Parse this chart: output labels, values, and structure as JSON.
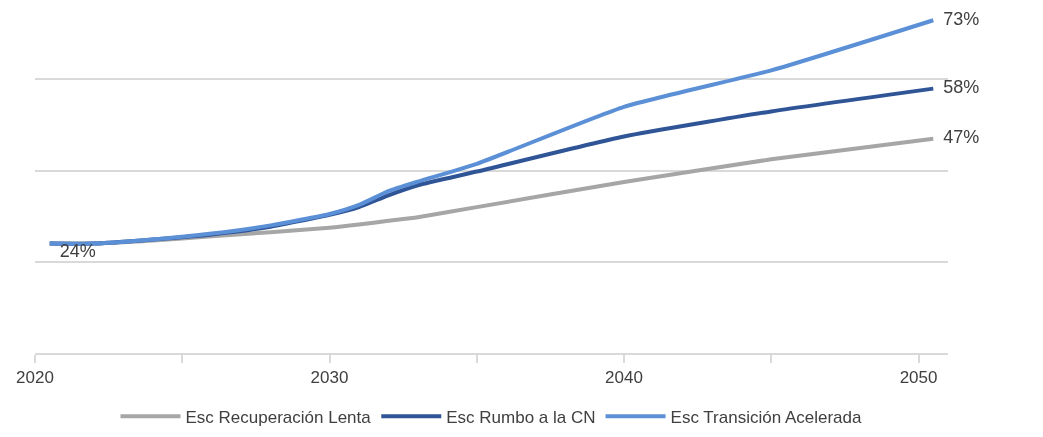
{
  "chart_data": {
    "type": "line",
    "xlim": [
      2020,
      2051
    ],
    "xticks": [
      2020,
      {
        "value": 2025,
        "label": null
      },
      2030,
      {
        "value": 2035,
        "label": null
      },
      2040,
      {
        "value": 2045,
        "label": null
      },
      2050
    ],
    "ylim": [
      0,
      77
    ],
    "yticks": [
      {
        "value": 0,
        "label": null
      },
      {
        "value": 20,
        "label": null
      },
      {
        "value": 40,
        "label": null
      },
      {
        "value": 60,
        "label": null
      }
    ],
    "tick_labels": "x",
    "grid": "y",
    "legend": "bottom",
    "marker": "none",
    "line_style": "solid",
    "x": [
      2020.5,
      2022,
      2024,
      2026,
      2028,
      2030,
      2031,
      2032,
      2033,
      2035,
      2040,
      2045,
      2050.5
    ],
    "series": [
      {
        "name": "Esc Recuperación Lenta",
        "color": "#a6a6a6",
        "values": [
          24,
          24,
          24.7,
          25.6,
          26.5,
          27.5,
          28.2,
          29,
          29.8,
          32,
          37.5,
          42.5,
          47
        ],
        "value_labels": [
          "24%",
          null,
          null,
          null,
          null,
          null,
          null,
          null,
          null,
          null,
          null,
          null,
          "47%"
        ]
      },
      {
        "name": "Esc Rumbo a la CN",
        "color": "#2f5597",
        "values": [
          24,
          24,
          24.9,
          26,
          27.7,
          30.3,
          32,
          34.6,
          36.8,
          39.8,
          47.5,
          53,
          58
        ],
        "value_labels": [
          null,
          null,
          null,
          null,
          null,
          null,
          null,
          null,
          null,
          null,
          null,
          null,
          "58%"
        ]
      },
      {
        "name": "Esc Transición Acelerada",
        "color": "#5b8fd6",
        "values": [
          24,
          24,
          24.9,
          26.2,
          28,
          30.5,
          32.5,
          35.5,
          37.6,
          41.5,
          54,
          62,
          73
        ],
        "value_labels": [
          null,
          null,
          null,
          null,
          null,
          null,
          null,
          null,
          null,
          null,
          null,
          null,
          "73%"
        ]
      }
    ]
  }
}
